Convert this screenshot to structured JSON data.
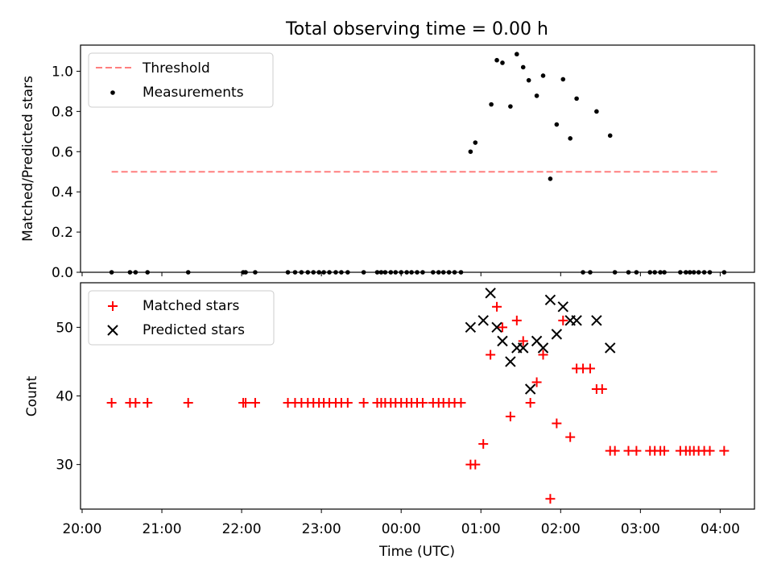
{
  "figure": {
    "title": "Total observing time = 0.00 h",
    "xlabel": "Time (UTC)",
    "x_tick_labels": [
      "20:00",
      "21:00",
      "22:00",
      "23:00",
      "00:00",
      "01:00",
      "02:00",
      "03:00",
      "04:00"
    ]
  },
  "chart_data": [
    {
      "type": "scatter",
      "panel": "top",
      "ylabel": "Matched/Predicted stars",
      "ylim": [
        0.0,
        1.13
      ],
      "yticks": [
        "0.0",
        "0.2",
        "0.4",
        "0.6",
        "0.8",
        "1.0"
      ],
      "xlim_hours": [
        19.98,
        28.43
      ],
      "x_unit": "hours after 00:00 UTC of first night (24 = 00:00 next day)",
      "legend_position": "top-left",
      "threshold": {
        "name": "Threshold",
        "value": 0.5,
        "x_start": 20.37,
        "x_end": 28.0,
        "color": "#ff7f7f",
        "style": "dashed"
      },
      "series": [
        {
          "name": "Measurements",
          "color": "#000000",
          "marker": "dot",
          "x": [
            20.37,
            20.6,
            20.67,
            20.82,
            21.33,
            22.02,
            22.05,
            22.17,
            22.58,
            22.67,
            22.75,
            22.83,
            22.9,
            22.97,
            23.03,
            23.1,
            23.18,
            23.25,
            23.33,
            23.53,
            23.7,
            23.75,
            23.8,
            23.87,
            23.93,
            24.0,
            24.07,
            24.13,
            24.2,
            24.27,
            24.4,
            24.47,
            24.53,
            24.6,
            24.67,
            24.75,
            24.87,
            24.93,
            25.13,
            25.2,
            25.27,
            25.37,
            25.45,
            25.53,
            25.6,
            25.7,
            25.78,
            25.87,
            25.95,
            26.03,
            26.12,
            26.2,
            26.28,
            26.37,
            26.45,
            26.62,
            26.68,
            26.85,
            26.95,
            27.12,
            27.18,
            27.25,
            27.3,
            27.5,
            27.57,
            27.62,
            27.67,
            27.73,
            27.8,
            27.87,
            28.05
          ],
          "y": [
            0,
            0,
            0,
            0,
            0,
            0,
            0,
            0,
            0,
            0,
            0,
            0,
            0,
            0,
            0,
            0,
            0,
            0,
            0,
            0,
            0,
            0,
            0,
            0,
            0,
            0,
            0,
            0,
            0,
            0,
            0,
            0,
            0,
            0,
            0,
            0,
            0.6,
            0.645,
            0.835,
            1.055,
            1.042,
            0.825,
            1.085,
            1.02,
            0.955,
            0.878,
            0.978,
            0.465,
            0.735,
            0.96,
            0.666,
            0.864,
            0,
            0,
            0.8,
            0.68,
            0,
            0,
            0,
            0,
            0,
            0,
            0,
            0,
            0,
            0,
            0,
            0,
            0,
            0,
            0
          ]
        }
      ]
    },
    {
      "type": "scatter",
      "panel": "bottom",
      "ylabel": "Count",
      "ylim": [
        23.5,
        56.5
      ],
      "yticks": [
        "30",
        "40",
        "50"
      ],
      "xlim_hours": [
        19.98,
        28.43
      ],
      "legend_position": "top-left",
      "series": [
        {
          "name": "Matched stars",
          "color": "#ff0000",
          "marker": "plus",
          "x": [
            20.37,
            20.6,
            20.67,
            20.82,
            21.33,
            22.02,
            22.05,
            22.17,
            22.58,
            22.67,
            22.75,
            22.83,
            22.9,
            22.97,
            23.03,
            23.1,
            23.18,
            23.25,
            23.33,
            23.53,
            23.7,
            23.75,
            23.8,
            23.87,
            23.93,
            24.0,
            24.07,
            24.13,
            24.2,
            24.27,
            24.4,
            24.47,
            24.53,
            24.6,
            24.67,
            24.75,
            24.87,
            24.93,
            25.03,
            25.12,
            25.2,
            25.27,
            25.37,
            25.45,
            25.53,
            25.62,
            25.7,
            25.78,
            25.87,
            25.95,
            26.03,
            26.12,
            26.2,
            26.28,
            26.37,
            26.45,
            26.52,
            26.62,
            26.68,
            26.85,
            26.95,
            27.12,
            27.18,
            27.25,
            27.3,
            27.5,
            27.57,
            27.62,
            27.67,
            27.73,
            27.8,
            27.87,
            28.05
          ],
          "y": [
            39,
            39,
            39,
            39,
            39,
            39,
            39,
            39,
            39,
            39,
            39,
            39,
            39,
            39,
            39,
            39,
            39,
            39,
            39,
            39,
            39,
            39,
            39,
            39,
            39,
            39,
            39,
            39,
            39,
            39,
            39,
            39,
            39,
            39,
            39,
            39,
            30,
            30,
            33,
            46,
            53,
            50,
            37,
            51,
            48,
            39,
            42,
            46,
            25,
            36,
            51,
            34,
            44,
            44,
            44,
            41,
            41,
            32,
            32,
            32,
            32,
            32,
            32,
            32,
            32,
            32,
            32,
            32,
            32,
            32,
            32,
            32,
            32
          ]
        },
        {
          "name": "Predicted stars",
          "color": "#000000",
          "marker": "x",
          "x": [
            24.87,
            25.03,
            25.12,
            25.2,
            25.27,
            25.37,
            25.45,
            25.53,
            25.62,
            25.7,
            25.78,
            25.87,
            25.95,
            26.03,
            26.12,
            26.2,
            26.45,
            26.62
          ],
          "y": [
            50,
            51,
            55,
            50,
            48,
            45,
            47,
            47,
            41,
            48,
            47,
            54,
            49,
            53,
            51,
            51,
            51,
            47
          ]
        }
      ]
    }
  ]
}
